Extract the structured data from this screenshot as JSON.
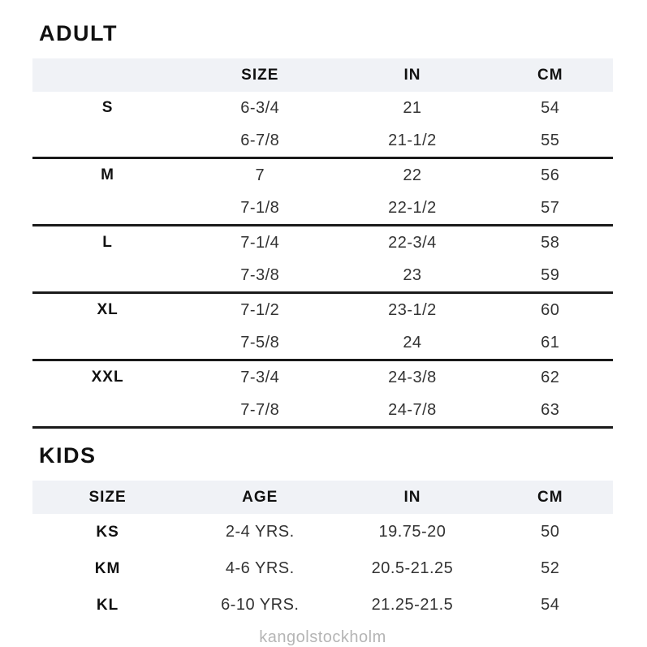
{
  "watermark": "kangolstockholm",
  "colors": {
    "header_band": "#f0f2f6",
    "separator_line": "#1a1a1a",
    "heading_text": "#111111",
    "value_text": "#333333",
    "watermark_text": "#b5b5b5"
  },
  "adult": {
    "title": "ADULT",
    "columns": [
      "",
      "SIZE",
      "IN",
      "CM"
    ],
    "groups": [
      {
        "label": "S",
        "rows": [
          {
            "size": "6-3/4",
            "in": "21",
            "cm": "54"
          },
          {
            "size": "6-7/8",
            "in": "21-1/2",
            "cm": "55"
          }
        ]
      },
      {
        "label": "M",
        "rows": [
          {
            "size": "7",
            "in": "22",
            "cm": "56"
          },
          {
            "size": "7-1/8",
            "in": "22-1/2",
            "cm": "57"
          }
        ]
      },
      {
        "label": "L",
        "rows": [
          {
            "size": "7-1/4",
            "in": "22-3/4",
            "cm": "58"
          },
          {
            "size": "7-3/8",
            "in": "23",
            "cm": "59"
          }
        ]
      },
      {
        "label": "XL",
        "rows": [
          {
            "size": "7-1/2",
            "in": "23-1/2",
            "cm": "60"
          },
          {
            "size": "7-5/8",
            "in": "24",
            "cm": "61"
          }
        ]
      },
      {
        "label": "XXL",
        "rows": [
          {
            "size": "7-3/4",
            "in": "24-3/8",
            "cm": "62"
          },
          {
            "size": "7-7/8",
            "in": "24-7/8",
            "cm": "63"
          }
        ]
      }
    ]
  },
  "kids": {
    "title": "KIDS",
    "columns": [
      "SIZE",
      "AGE",
      "IN",
      "CM"
    ],
    "rows": [
      {
        "size": "KS",
        "age": "2-4 YRS.",
        "in": "19.75-20",
        "cm": "50"
      },
      {
        "size": "KM",
        "age": "4-6 YRS.",
        "in": "20.5-21.25",
        "cm": "52"
      },
      {
        "size": "KL",
        "age": "6-10 YRS.",
        "in": "21.25-21.5",
        "cm": "54"
      }
    ]
  }
}
